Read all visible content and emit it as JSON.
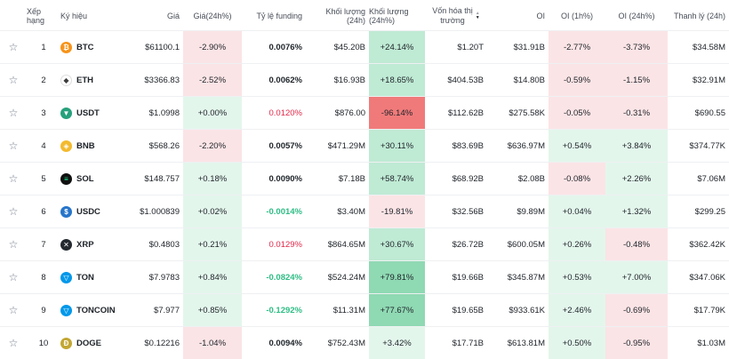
{
  "headers": {
    "rank": "Xếp hạng",
    "symbol": "Ký hiệu",
    "price": "Giá",
    "change": "Giá(24h%)",
    "funding": "Tỷ lệ funding",
    "volume": "Khối lượng (24h)",
    "volume_change": "Khối lượng (24h%)",
    "market_cap_line1": "Vốn hóa thị",
    "market_cap_line2": "trường",
    "oi": "OI",
    "oi_1h": "OI (1h%)",
    "oi_24h": "OI (24h%)",
    "liquidation": "Thanh lý (24h)"
  },
  "colors": {
    "neg_light": "#fbe4e6",
    "pos_light": "#e3f6ec",
    "pos_mid": "#bfead4",
    "pos_strong": "#8fd9b3",
    "neg_strong": "#f07a7a"
  },
  "rows": [
    {
      "rank": "1",
      "symbol": "BTC",
      "icon": "btc-icon",
      "price": "$61100.1",
      "change": "-2.90%",
      "funding": "0.0076%",
      "volume": "$45.20B",
      "vchg": "+24.14%",
      "mcap": "$1.20T",
      "oi": "$31.91B",
      "oi1": "-2.77%",
      "oi24": "-3.73%",
      "liq": "$34.58M"
    },
    {
      "rank": "2",
      "symbol": "ETH",
      "icon": "eth-icon",
      "price": "$3366.83",
      "change": "-2.52%",
      "funding": "0.0062%",
      "volume": "$16.93B",
      "vchg": "+18.65%",
      "mcap": "$404.53B",
      "oi": "$14.80B",
      "oi1": "-0.59%",
      "oi24": "-1.15%",
      "liq": "$32.91M"
    },
    {
      "rank": "3",
      "symbol": "USDT",
      "icon": "usdt-icon",
      "price": "$1.0998",
      "change": "+0.00%",
      "funding": "0.0120%",
      "volume": "$876.00",
      "vchg": "-96.14%",
      "mcap": "$112.62B",
      "oi": "$275.58K",
      "oi1": "-0.05%",
      "oi24": "-0.31%",
      "liq": "$690.55"
    },
    {
      "rank": "4",
      "symbol": "BNB",
      "icon": "bnb-icon",
      "price": "$568.26",
      "change": "-2.20%",
      "funding": "0.0057%",
      "volume": "$471.29M",
      "vchg": "+30.11%",
      "mcap": "$83.69B",
      "oi": "$636.97M",
      "oi1": "+0.54%",
      "oi24": "+3.84%",
      "liq": "$374.77K"
    },
    {
      "rank": "5",
      "symbol": "SOL",
      "icon": "sol-icon",
      "price": "$148.757",
      "change": "+0.18%",
      "funding": "0.0090%",
      "volume": "$7.18B",
      "vchg": "+58.74%",
      "mcap": "$68.92B",
      "oi": "$2.08B",
      "oi1": "-0.08%",
      "oi24": "+2.26%",
      "liq": "$7.06M"
    },
    {
      "rank": "6",
      "symbol": "USDC",
      "icon": "usdc-icon",
      "price": "$1.000839",
      "change": "+0.02%",
      "funding": "-0.0014%",
      "volume": "$3.40M",
      "vchg": "-19.81%",
      "mcap": "$32.56B",
      "oi": "$9.89M",
      "oi1": "+0.04%",
      "oi24": "+1.32%",
      "liq": "$299.25"
    },
    {
      "rank": "7",
      "symbol": "XRP",
      "icon": "xrp-icon",
      "price": "$0.4803",
      "change": "+0.21%",
      "funding": "0.0129%",
      "volume": "$864.65M",
      "vchg": "+30.67%",
      "mcap": "$26.72B",
      "oi": "$600.05M",
      "oi1": "+0.26%",
      "oi24": "-0.48%",
      "liq": "$362.42K"
    },
    {
      "rank": "8",
      "symbol": "TON",
      "icon": "ton-icon",
      "price": "$7.9783",
      "change": "+0.84%",
      "funding": "-0.0824%",
      "volume": "$524.24M",
      "vchg": "+79.81%",
      "mcap": "$19.66B",
      "oi": "$345.87M",
      "oi1": "+0.53%",
      "oi24": "+7.00%",
      "liq": "$347.06K"
    },
    {
      "rank": "9",
      "symbol": "TONCOIN",
      "icon": "toncoin-icon",
      "price": "$7.977",
      "change": "+0.85%",
      "funding": "-0.1292%",
      "volume": "$11.31M",
      "vchg": "+77.67%",
      "mcap": "$19.65B",
      "oi": "$933.61K",
      "oi1": "+2.46%",
      "oi24": "-0.69%",
      "liq": "$17.79K"
    },
    {
      "rank": "10",
      "symbol": "DOGE",
      "icon": "doge-icon",
      "price": "$0.12216",
      "change": "-1.04%",
      "funding": "0.0094%",
      "volume": "$752.43M",
      "vchg": "+3.42%",
      "mcap": "$17.71B",
      "oi": "$613.81M",
      "oi1": "+0.50%",
      "oi24": "-0.95%",
      "liq": "$1.03M"
    }
  ]
}
